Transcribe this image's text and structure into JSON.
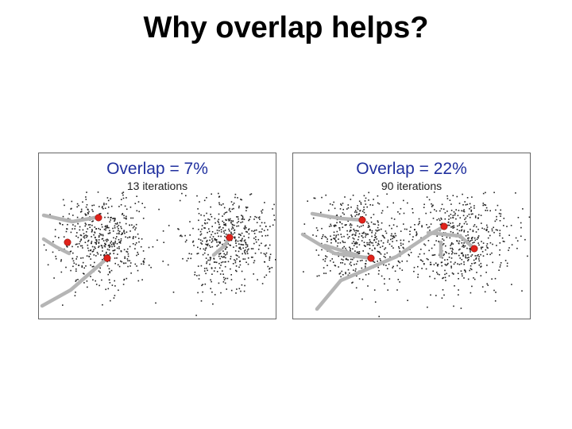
{
  "slide": {
    "title": "Why overlap helps?"
  },
  "colors": {
    "heading": "#1f2f9e",
    "trajectory": "#b5b5b5",
    "center": "#e0231b",
    "point": "#222222"
  },
  "panels": [
    {
      "heading": "Overlap = 7%",
      "subheading": "13 iterations"
    },
    {
      "heading": "Overlap = 22%",
      "subheading": "90 iterations"
    }
  ]
}
